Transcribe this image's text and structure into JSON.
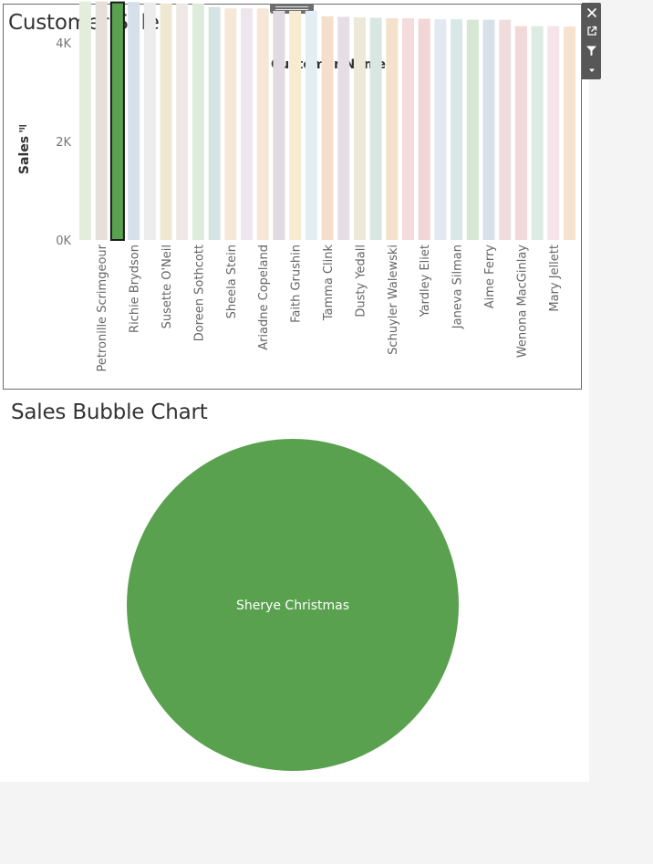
{
  "toolbar": {
    "icons": [
      "close-icon",
      "external-link-icon",
      "filter-icon",
      "dropdown-icon"
    ]
  },
  "colors": {
    "highlight": "#59a14f",
    "highlight_border": "#1a1a1a",
    "bubble": "#59a14f",
    "bubble_label": "#ffffff"
  },
  "chart_data": [
    {
      "type": "bar",
      "title": "Customer Sales",
      "xlabel": "Customer Name",
      "ylabel": "Sales",
      "ylim": [
        0,
        5000
      ],
      "yticks": [
        "0K",
        "2K",
        "4K"
      ],
      "ytick_values": [
        0,
        2000,
        4000
      ],
      "grid": false,
      "sort_indicator": "descending",
      "categories": [
        "",
        "Petronille Scrimgeour",
        "",
        "Richie Brydson",
        "",
        "Susette O'Neil",
        "",
        "Doreen Sothcott",
        "",
        "Sheela Stein",
        "",
        "Ariadne Copeland",
        "",
        "Faith Grushin",
        "",
        "Tamma Clink",
        "",
        "Dusty Yedall",
        "",
        "Schuyler Walewski",
        "",
        "Yardley Eliet",
        "",
        "Janeva Silman",
        "",
        "Aime Ferry",
        "",
        "Wenona MacGinlay",
        "",
        "Mary Jellett",
        ""
      ],
      "values": [
        4840,
        4840,
        4840,
        4830,
        4820,
        4800,
        4800,
        4800,
        4730,
        4700,
        4700,
        4700,
        4650,
        4650,
        4650,
        4540,
        4530,
        4520,
        4510,
        4500,
        4500,
        4490,
        4480,
        4480,
        4470,
        4470,
        4470,
        4340,
        4340,
        4340,
        4330
      ],
      "bar_colors": [
        "#e2eedb",
        "#e6dfda",
        "#59a14f",
        "#d6e0ea",
        "#ececec",
        "#efe7d2",
        "#eee9e6",
        "#deecdc",
        "#d4e3e3",
        "#f6e8d6",
        "#efe5ec",
        "#f6e6d8",
        "#dfdbe0",
        "#f7ecd2",
        "#e3edf4",
        "#f5dfcc",
        "#e5dfe5",
        "#ede9d9",
        "#d8e7e1",
        "#f6e2cc",
        "#f4dcdc",
        "#f2d6d6",
        "#e3e9f2",
        "#d9e7e7",
        "#d6e8d4",
        "#d6e1ea",
        "#f0dede",
        "#f2d8d8",
        "#ddebe4",
        "#f5e4e9",
        "#f7e1cf"
      ],
      "highlighted_index": 2
    },
    {
      "type": "bubble",
      "title": "Sales Bubble Chart",
      "series": [
        {
          "name": "Sherye Christmas",
          "values": [
            4850
          ]
        }
      ]
    }
  ]
}
